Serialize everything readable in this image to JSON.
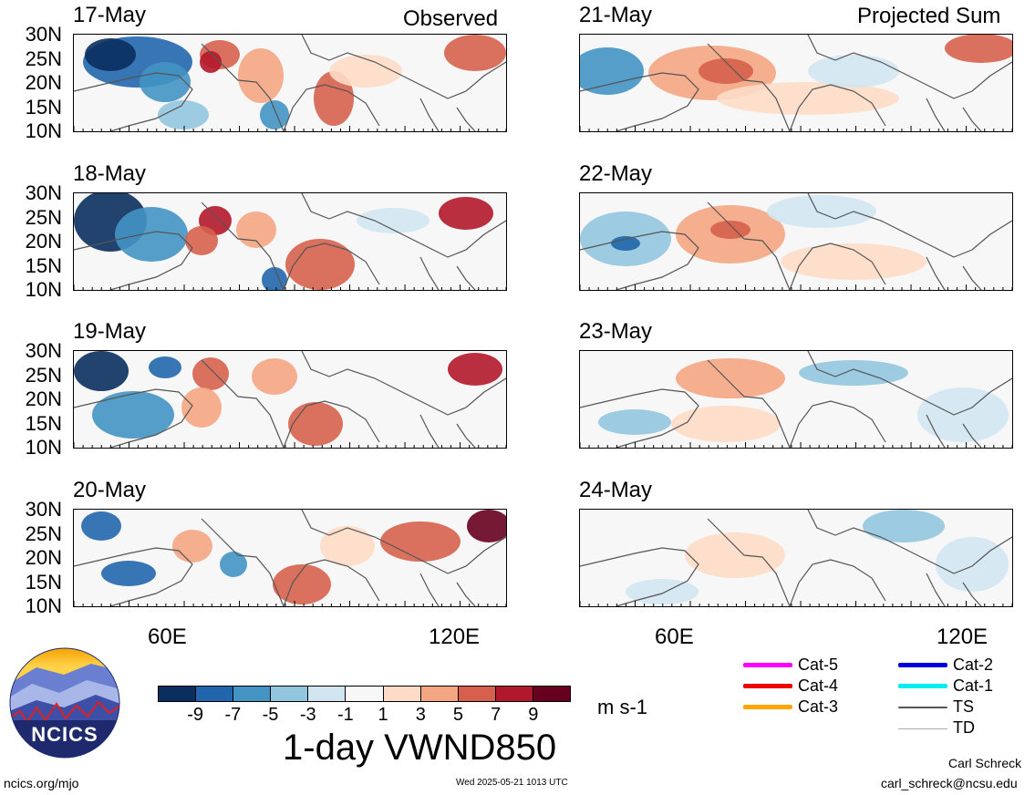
{
  "columns": {
    "left_title": "Observed",
    "right_title": "Projected Sum"
  },
  "panels_left": [
    {
      "date": "17-May"
    },
    {
      "date": "18-May"
    },
    {
      "date": "19-May"
    },
    {
      "date": "20-May"
    }
  ],
  "panels_right": [
    {
      "date": "21-May"
    },
    {
      "date": "22-May"
    },
    {
      "date": "23-May"
    },
    {
      "date": "24-May"
    }
  ],
  "axes": {
    "lat_ticks": [
      "30N",
      "25N",
      "20N",
      "15N",
      "10N"
    ],
    "lon_ticks": [
      "60E",
      "120E"
    ]
  },
  "colorbar": {
    "labels": [
      "-9",
      "-7",
      "-5",
      "-3",
      "-1",
      "1",
      "3",
      "5",
      "7",
      "9"
    ],
    "colors": [
      "#0a2f5e",
      "#2166ac",
      "#4393c3",
      "#92c5de",
      "#d1e5f0",
      "#f7f7f7",
      "#fddbc7",
      "#f4a582",
      "#d6604d",
      "#b2182b",
      "#67001f"
    ],
    "units": "m s-1"
  },
  "title": "1-day VWND850",
  "legend": [
    {
      "label": "Cat-5",
      "color": "#ff00ff"
    },
    {
      "label": "Cat-4",
      "color": "#ee0000"
    },
    {
      "label": "Cat-3",
      "color": "#ffa500"
    },
    {
      "label": "Cat-2",
      "color": "#0000dd"
    },
    {
      "label": "Cat-1",
      "color": "#00eeee"
    },
    {
      "label": "TS",
      "color": "#555555"
    },
    {
      "label": "TD",
      "color": "#aaaaaa"
    }
  ],
  "logo": {
    "text": "NCICS"
  },
  "footer": {
    "url": "ncics.org/mjo",
    "timestamp": "Wed 2025-05-21 1013 UTC",
    "author": "Carl Schreck",
    "email": "carl_schreck@ncsu.edu"
  }
}
